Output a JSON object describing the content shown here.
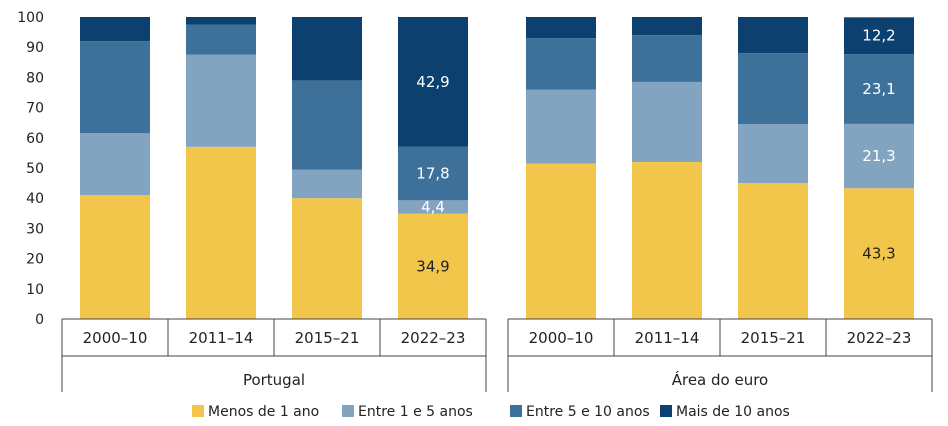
{
  "chart_data": {
    "type": "bar",
    "stacked": true,
    "ylim": [
      0,
      100
    ],
    "yticks": [
      0,
      10,
      20,
      30,
      40,
      50,
      60,
      70,
      80,
      90,
      100
    ],
    "grid": false,
    "legend_position": "bottom",
    "series": [
      {
        "name": "Menos de 1 ano",
        "color": "#f2c54b"
      },
      {
        "name": "Entre 1 e 5 anos",
        "color": "#83a4c0"
      },
      {
        "name": "Entre 5 e 10 anos",
        "color": "#3e7199"
      },
      {
        "name": "Mais de 10 anos",
        "color": "#0c406e"
      }
    ],
    "groups": [
      {
        "name": "Portugal",
        "categories": [
          "2000–10",
          "2011–14",
          "2015–21",
          "2022–23"
        ],
        "values": [
          [
            41,
            20.5,
            30.5,
            8
          ],
          [
            57,
            30.5,
            10,
            2.5
          ],
          [
            40,
            9.5,
            29.5,
            21
          ],
          [
            34.9,
            4.4,
            17.8,
            42.9
          ]
        ]
      },
      {
        "name": "Área do euro",
        "categories": [
          "2000–10",
          "2011–14",
          "2015–21",
          "2022–23"
        ],
        "values": [
          [
            51.5,
            24.5,
            17,
            7
          ],
          [
            52,
            26.5,
            15.5,
            6
          ],
          [
            45,
            19.5,
            23.5,
            12
          ],
          [
            43.3,
            21.3,
            23.1,
            12.2
          ]
        ]
      }
    ],
    "data_labels": [
      {
        "group": 0,
        "bar": 3,
        "series": 0,
        "text": "34,9",
        "color": "#222222"
      },
      {
        "group": 0,
        "bar": 3,
        "series": 1,
        "text": "4,4",
        "color": "#ffffff"
      },
      {
        "group": 0,
        "bar": 3,
        "series": 2,
        "text": "17,8",
        "color": "#ffffff"
      },
      {
        "group": 0,
        "bar": 3,
        "series": 3,
        "text": "42,9",
        "color": "#ffffff"
      },
      {
        "group": 1,
        "bar": 3,
        "series": 0,
        "text": "43,3",
        "color": "#222222"
      },
      {
        "group": 1,
        "bar": 3,
        "series": 1,
        "text": "21,3",
        "color": "#ffffff"
      },
      {
        "group": 1,
        "bar": 3,
        "series": 2,
        "text": "23,1",
        "color": "#ffffff"
      },
      {
        "group": 1,
        "bar": 3,
        "series": 3,
        "text": "12,2",
        "color": "#ffffff"
      }
    ]
  }
}
